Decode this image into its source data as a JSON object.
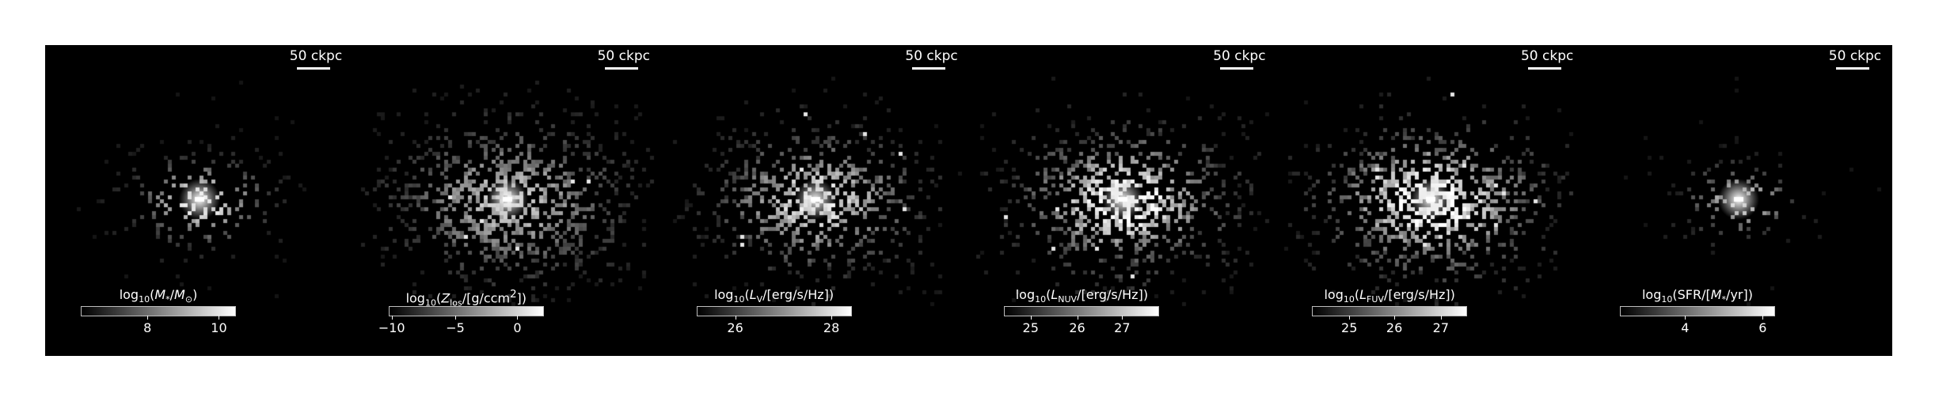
{
  "figure": {
    "panels": [
      {
        "id": "stellar-mass",
        "scalebar": "50 ckpc",
        "colorbar": {
          "label_html": "log<sub>10</sub>(<i>M</i><sub>*</sub>/<i>M</i><sub>⊙</sub>)",
          "ticks": [
            {
              "label": "8",
              "frac": 0.43
            },
            {
              "label": "10",
              "frac": 0.89
            }
          ]
        },
        "map": {
          "seed": 11,
          "spread": 48,
          "density": 0.3,
          "brightness": 0.85,
          "core": 1.0,
          "noise": 0.35
        }
      },
      {
        "id": "metallicity",
        "scalebar": "50 ckpc",
        "colorbar": {
          "label_html": "log<sub>10</sub>(<i>Z</i><sub>los</sub>/[g/ccm<sup>2</sup>])",
          "ticks": [
            {
              "label": "−10",
              "frac": 0.02
            },
            {
              "label": "−5",
              "frac": 0.43
            },
            {
              "label": "0",
              "frac": 0.83
            }
          ]
        },
        "map": {
          "seed": 23,
          "spread": 80,
          "density": 0.55,
          "brightness": 0.55,
          "core": 1.0,
          "noise": 0.45
        }
      },
      {
        "id": "luminosity-v",
        "scalebar": "50 ckpc",
        "colorbar": {
          "label_html": "log<sub>10</sub>(<i>L</i><sub>V</sub>/[erg/s/Hz])",
          "ticks": [
            {
              "label": "26",
              "frac": 0.25
            },
            {
              "label": "28",
              "frac": 0.87
            }
          ]
        },
        "map": {
          "seed": 37,
          "spread": 70,
          "density": 0.5,
          "brightness": 0.65,
          "core": 0.95,
          "noise": 0.55
        }
      },
      {
        "id": "luminosity-nuv",
        "scalebar": "50 ckpc",
        "colorbar": {
          "label_html": "log<sub>10</sub>(<i>L</i><sub>NUV</sub>/[erg/s/Hz])",
          "ticks": [
            {
              "label": "25",
              "frac": 0.17
            },
            {
              "label": "26",
              "frac": 0.47
            },
            {
              "label": "27",
              "frac": 0.76
            }
          ]
        },
        "map": {
          "seed": 41,
          "spread": 72,
          "density": 0.52,
          "brightness": 0.75,
          "core": 0.95,
          "noise": 0.65
        }
      },
      {
        "id": "luminosity-fuv",
        "scalebar": "50 ckpc",
        "colorbar": {
          "label_html": "log<sub>10</sub>(<i>L</i><sub>FUV</sub>/[erg/s/Hz])",
          "ticks": [
            {
              "label": "25",
              "frac": 0.24
            },
            {
              "label": "26",
              "frac": 0.53
            },
            {
              "label": "27",
              "frac": 0.83
            }
          ]
        },
        "map": {
          "seed": 53,
          "spread": 74,
          "density": 0.55,
          "brightness": 0.8,
          "core": 0.95,
          "noise": 0.7
        }
      },
      {
        "id": "sfr",
        "scalebar": "50 ckpc",
        "colorbar": {
          "label_html": "log<sub>10</sub>(SFR/[<i>M</i><sub>*</sub>/yr])",
          "ticks": [
            {
              "label": "4",
              "frac": 0.42
            },
            {
              "label": "6",
              "frac": 0.92
            }
          ]
        },
        "map": {
          "seed": 67,
          "spread": 40,
          "density": 0.18,
          "brightness": 0.6,
          "core": 1.0,
          "noise": 0.4
        }
      }
    ]
  }
}
